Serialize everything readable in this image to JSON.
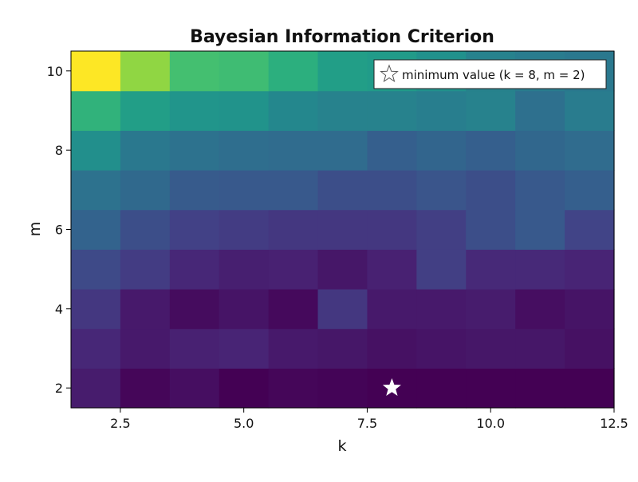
{
  "chart_data": {
    "type": "heatmap",
    "title": "Bayesian Information Criterion",
    "xlabel": "k",
    "ylabel": "m",
    "x": [
      2,
      3,
      4,
      5,
      6,
      7,
      8,
      9,
      10,
      11,
      12
    ],
    "y": [
      2,
      3,
      4,
      5,
      6,
      7,
      8,
      9,
      10
    ],
    "xlim": [
      1.5,
      12.5
    ],
    "ylim": [
      1.5,
      10.5
    ],
    "x_ticks": [
      "2.5",
      "5.0",
      "7.5",
      "10.0",
      "12.5"
    ],
    "x_tick_values": [
      2.5,
      5.0,
      7.5,
      10.0,
      12.5
    ],
    "y_ticks": [
      "2",
      "4",
      "6",
      "8",
      "10"
    ],
    "y_tick_values": [
      2,
      4,
      6,
      8,
      10
    ],
    "colormap": "viridis",
    "value_note": "relative colour scale 0 (dark purple) to 1 (yellow)",
    "z": [
      [
        0.1,
        0.02,
        0.05,
        0.0,
        0.02,
        0.01,
        0.0,
        0.0,
        0.0,
        0.0,
        0.0
      ],
      [
        0.14,
        0.09,
        0.12,
        0.13,
        0.09,
        0.08,
        0.06,
        0.07,
        0.08,
        0.08,
        0.06
      ],
      [
        0.2,
        0.09,
        0.04,
        0.07,
        0.03,
        0.2,
        0.09,
        0.09,
        0.1,
        0.05,
        0.07
      ],
      [
        0.28,
        0.22,
        0.14,
        0.11,
        0.12,
        0.08,
        0.12,
        0.23,
        0.15,
        0.15,
        0.13
      ],
      [
        0.4,
        0.3,
        0.24,
        0.22,
        0.2,
        0.2,
        0.2,
        0.23,
        0.3,
        0.35,
        0.25
      ],
      [
        0.47,
        0.43,
        0.36,
        0.35,
        0.35,
        0.3,
        0.3,
        0.33,
        0.3,
        0.35,
        0.38
      ],
      [
        0.62,
        0.5,
        0.47,
        0.45,
        0.44,
        0.44,
        0.38,
        0.41,
        0.38,
        0.42,
        0.44
      ],
      [
        0.78,
        0.7,
        0.65,
        0.64,
        0.58,
        0.55,
        0.55,
        0.53,
        0.55,
        0.46,
        0.52
      ],
      [
        1.0,
        0.9,
        0.82,
        0.81,
        0.77,
        0.7,
        0.68,
        0.63,
        0.55,
        0.52,
        0.5
      ]
    ],
    "marker": {
      "x": 8,
      "y": 2,
      "symbol": "star",
      "color": "#ffffff"
    },
    "legend": {
      "position": "top-right",
      "label": "minimum value (k = 8, m = 2)"
    }
  }
}
